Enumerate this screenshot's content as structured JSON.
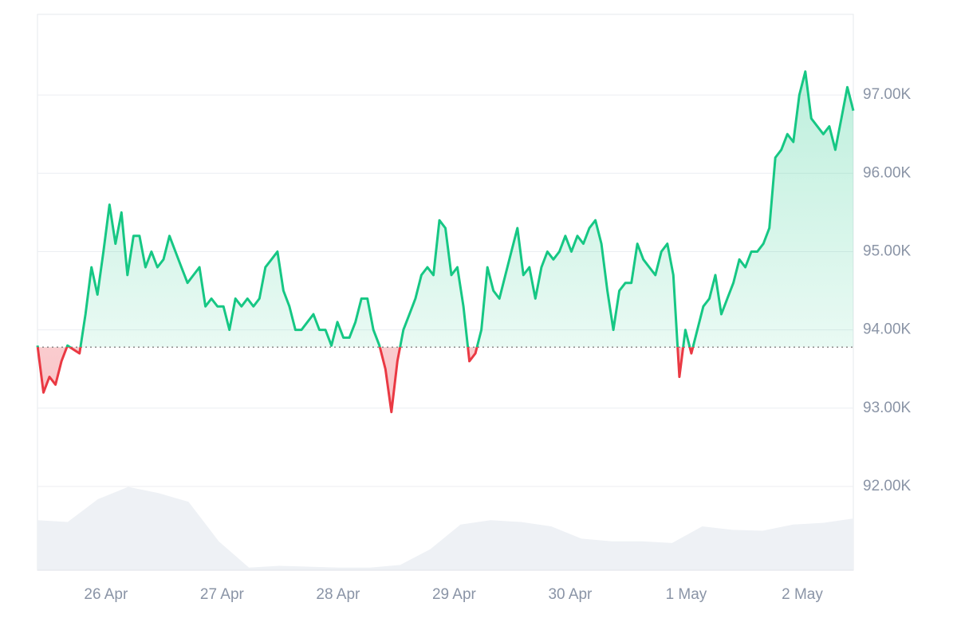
{
  "chart_data": {
    "type": "line",
    "values": [
      93800,
      93200,
      93400,
      93300,
      93600,
      93800,
      93750,
      93700,
      94200,
      94800,
      94450,
      95000,
      95600,
      95100,
      95500,
      94700,
      95200,
      95200,
      94800,
      95000,
      94800,
      94900,
      95200,
      95000,
      94800,
      94600,
      94700,
      94800,
      94300,
      94400,
      94300,
      94300,
      94000,
      94400,
      94300,
      94400,
      94300,
      94400,
      94800,
      94900,
      95000,
      94500,
      94300,
      94000,
      94000,
      94100,
      94200,
      94000,
      94000,
      93800,
      94100,
      93900,
      93900,
      94100,
      94400,
      94400,
      94000,
      93800,
      93500,
      92950,
      93600,
      94000,
      94200,
      94400,
      94700,
      94800,
      94700,
      95400,
      95300,
      94700,
      94800,
      94300,
      93600,
      93700,
      94000,
      94800,
      94500,
      94400,
      94700,
      95000,
      95300,
      94700,
      94800,
      94400,
      94800,
      95000,
      94900,
      95000,
      95200,
      95000,
      95200,
      95100,
      95300,
      95400,
      95100,
      94500,
      94000,
      94500,
      94600,
      94600,
      95100,
      94900,
      94800,
      94700,
      95000,
      95100,
      94700,
      93400,
      94000,
      93700,
      94000,
      94300,
      94400,
      94700,
      94200,
      94400,
      94600,
      94900,
      94800,
      95000,
      95000,
      95100,
      95300,
      96200,
      96300,
      96500,
      96400,
      97000,
      97300,
      96700,
      96600,
      96500,
      96600,
      96300,
      96700,
      97100,
      96800
    ],
    "baseline": 93780,
    "colors": {
      "up": "#16c784",
      "down": "#ea3943"
    },
    "ylim": [
      90930,
      98030
    ],
    "yticks": [
      {
        "value": 92000,
        "label": "92.00K"
      },
      {
        "value": 93000,
        "label": "93.00K"
      },
      {
        "value": 94000,
        "label": "94.00K"
      },
      {
        "value": 95000,
        "label": "95.00K"
      },
      {
        "value": 96000,
        "label": "96.00K"
      },
      {
        "value": 97000,
        "label": "97.00K"
      }
    ],
    "xlim": [
      25.41,
      32.44
    ],
    "xticks": [
      {
        "value": 26,
        "label": "26 Apr"
      },
      {
        "value": 27,
        "label": "27 Apr"
      },
      {
        "value": 28,
        "label": "28 Apr"
      },
      {
        "value": 29,
        "label": "29 Apr"
      },
      {
        "value": 30,
        "label": "30 Apr"
      },
      {
        "value": 31,
        "label": "1 May"
      },
      {
        "value": 32,
        "label": "2 May"
      }
    ],
    "grid": true,
    "volume": {
      "color": "#eef1f5",
      "vlim": [
        0,
        100
      ],
      "values": [
        57,
        55,
        81,
        95,
        88,
        78,
        33,
        3,
        5,
        4,
        3,
        3,
        6,
        24,
        52,
        57,
        55,
        50,
        36,
        33,
        33,
        31,
        50,
        46,
        45,
        52,
        54,
        59
      ]
    }
  }
}
